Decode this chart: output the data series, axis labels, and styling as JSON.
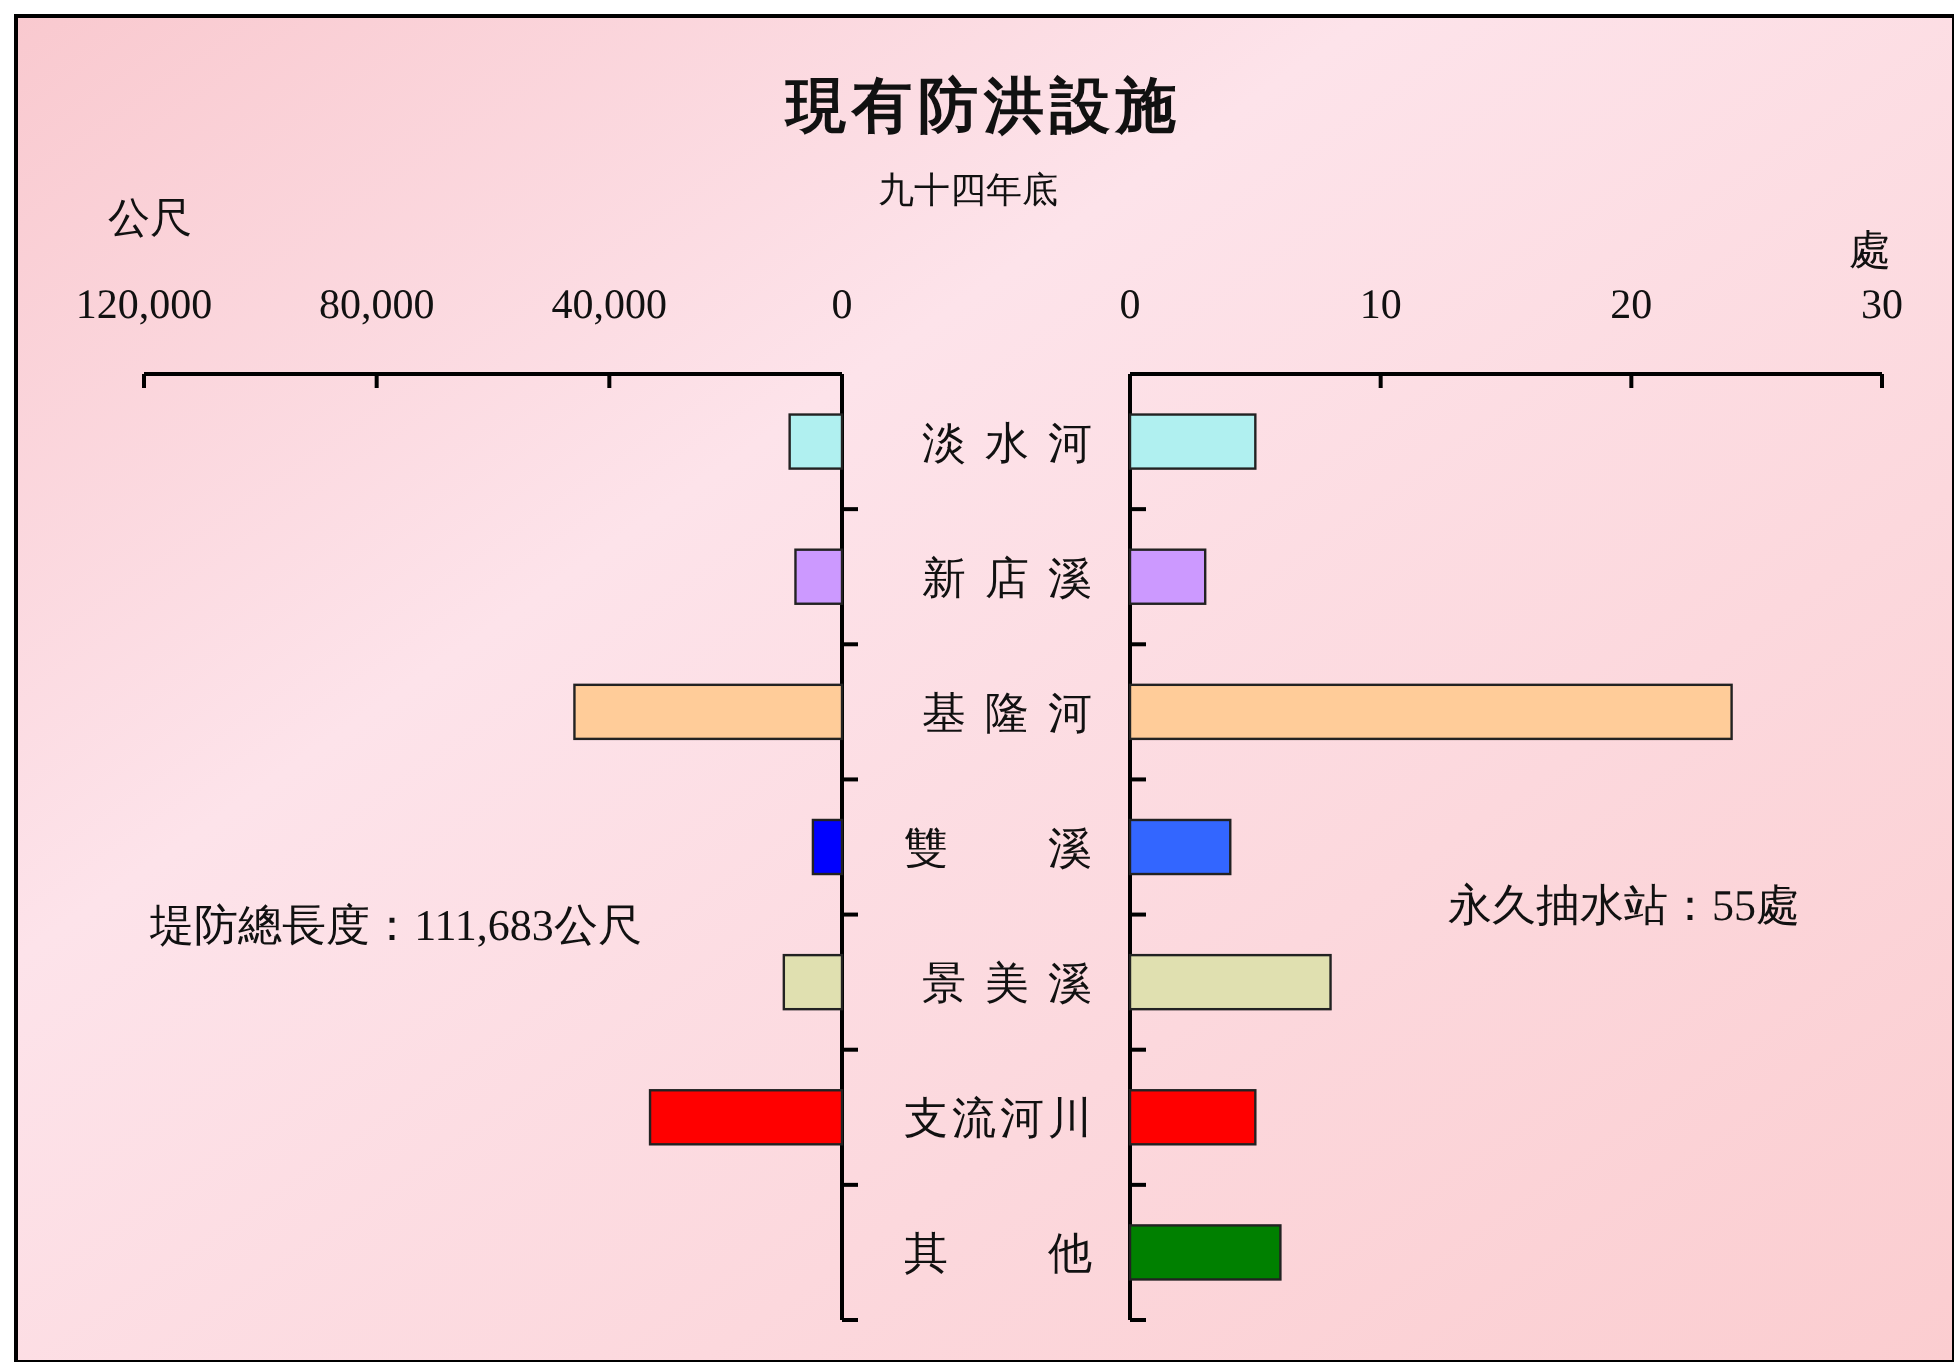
{
  "chart_data": [
    {
      "type": "bar",
      "orientation": "horizontal",
      "title": "現有防洪設施",
      "subtitle": "九十四年底",
      "xlabel": "公尺",
      "categories": [
        "淡 水 河",
        "新 店 溪",
        "基 隆 河",
        "雙　　溪",
        "景 美 溪",
        "支流河川",
        "其　　他"
      ],
      "values": [
        9000,
        8000,
        46000,
        5000,
        10000,
        33000,
        0
      ],
      "colors": [
        "#b0f0f0",
        "#cc99ff",
        "#ffcc99",
        "#0000ff",
        "#e0e0b0",
        "#ff0000",
        "#008000"
      ],
      "xlim": [
        120000,
        0
      ],
      "xticks": [
        {
          "value": 120000,
          "label": "120,000"
        },
        {
          "value": 80000,
          "label": "80,000"
        },
        {
          "value": 40000,
          "label": "40,000"
        },
        0
      ],
      "annotations": [
        "堤防總長度：111,683公尺"
      ]
    },
    {
      "type": "bar",
      "orientation": "horizontal",
      "xlabel": "處",
      "tick_labels": "x",
      "values": [
        5,
        3,
        24,
        4,
        8,
        5,
        6
      ],
      "colors": [
        "#b0f0f0",
        "#cc99ff",
        "#ffcc99",
        "#3366ff",
        "#e0e0b0",
        "#ff0000",
        "#008000"
      ],
      "xlim": [
        0,
        30
      ],
      "xticks": [
        0,
        10,
        20,
        30
      ],
      "annotations": [
        "永久抽水站：55處"
      ]
    }
  ]
}
